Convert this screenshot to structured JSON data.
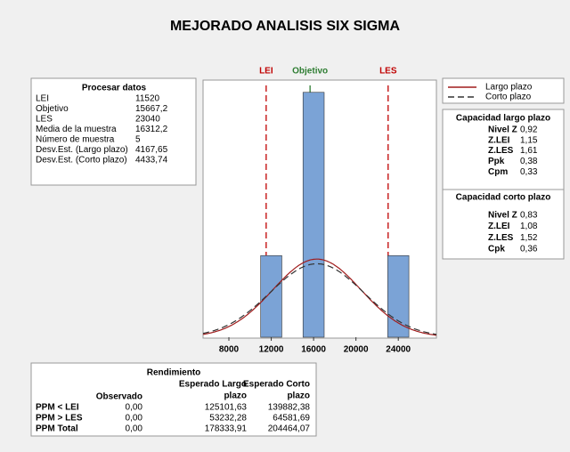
{
  "title": "MEJORADO ANALISIS SIX SIGMA",
  "process_data": {
    "title": "Procesar datos",
    "rows": [
      [
        "LEI",
        "11520"
      ],
      [
        "Objetivo",
        "15667,2"
      ],
      [
        "LES",
        "23040"
      ],
      [
        "Media de la muestra",
        "16312,2"
      ],
      [
        "Número de muestra",
        "5"
      ],
      [
        "Desv.Est. (Largo plazo)",
        "4167,65"
      ],
      [
        "Desv.Est. (Corto plazo)",
        "4433,74"
      ]
    ]
  },
  "chart_data": {
    "type": "histogram",
    "bins": [
      11000,
      13000,
      15000,
      17000,
      19000,
      21000,
      23000,
      25000
    ],
    "counts": [
      1,
      0,
      3,
      0,
      0,
      0,
      1
    ],
    "color": "#7ba3d6",
    "xlim": [
      5560,
      27600
    ],
    "xticks": [
      8000,
      12000,
      16000,
      20000,
      24000
    ],
    "ylim": [
      0,
      3.15
    ],
    "limits": [
      {
        "name": "LEI",
        "value": 11520,
        "color": "#c00000",
        "style": "dashed"
      },
      {
        "name": "Objetivo",
        "value": 15667.2,
        "color": "#2e7d32",
        "style": "solid"
      },
      {
        "name": "LES",
        "value": 23040,
        "color": "#c00000",
        "style": "dashed"
      }
    ],
    "series": [
      {
        "name": "Largo plazo",
        "color": "#a01c1c",
        "style": "solid",
        "mean": 16312.2,
        "sd": 4167.65
      },
      {
        "name": "Corto plazo",
        "color": "#333333",
        "style": "dashed",
        "mean": 16312.2,
        "sd": 4433.74
      }
    ]
  },
  "capability_long": {
    "title": "Capacidad largo plazo",
    "rows": [
      [
        "Nivel Z",
        "0,92"
      ],
      [
        "Z.LEI",
        "1,15"
      ],
      [
        "Z.LES",
        "1,61"
      ],
      [
        "Ppk",
        "0,38"
      ],
      [
        "Cpm",
        "0,33"
      ]
    ]
  },
  "capability_short": {
    "title": "Capacidad corto plazo",
    "rows": [
      [
        "Nivel Z",
        "0,83"
      ],
      [
        "Z.LEI",
        "1,08"
      ],
      [
        "Z.LES",
        "1,52"
      ],
      [
        "Cpk",
        "0,36"
      ]
    ]
  },
  "yield": {
    "title": "Rendimiento",
    "columns": [
      {
        "lines": [
          "Observado"
        ]
      },
      {
        "lines": [
          "Esperado Largo",
          "plazo"
        ]
      },
      {
        "lines": [
          "Esperado Corto",
          "plazo"
        ]
      }
    ],
    "rows": [
      {
        "label": "PPM < LEI",
        "values": [
          "0,00",
          "125101,63",
          "139882,38"
        ]
      },
      {
        "label": "PPM > LES",
        "values": [
          "0,00",
          "53232,28",
          "64581,69"
        ]
      },
      {
        "label": "PPM Total",
        "values": [
          "0,00",
          "178333,91",
          "204464,07"
        ]
      }
    ]
  }
}
